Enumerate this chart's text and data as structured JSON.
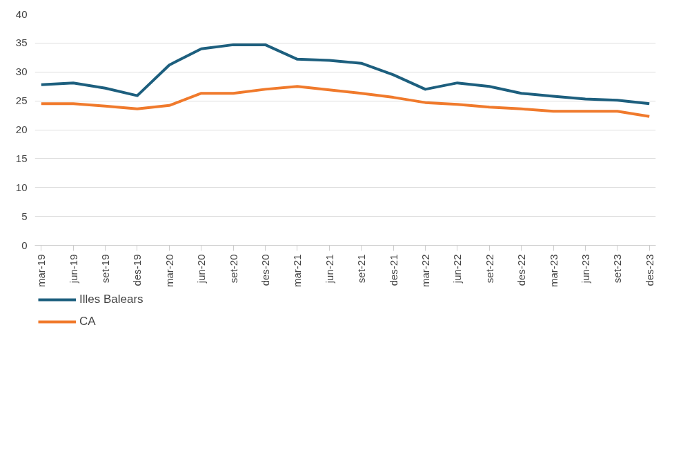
{
  "chart_data": {
    "type": "line",
    "categories": [
      "mar-19",
      "jun-19",
      "set-19",
      "des-19",
      "mar-20",
      "jun-20",
      "set-20",
      "des-20",
      "mar-21",
      "jun-21",
      "set-21",
      "des-21",
      "mar-22",
      "jun-22",
      "set-22",
      "des-22",
      "mar-23",
      "jun-23",
      "set-23",
      "des-23"
    ],
    "series": [
      {
        "name": "Illes Balears",
        "color": "#1d5f7e",
        "values": [
          27.8,
          28.1,
          27.2,
          25.9,
          31.2,
          34.0,
          34.7,
          34.7,
          32.2,
          32.0,
          31.5,
          29.5,
          27.0,
          28.1,
          27.5,
          26.3,
          25.8,
          25.3,
          25.1,
          24.5
        ]
      },
      {
        "name": "CA",
        "color": "#f07a2c",
        "values": [
          24.5,
          24.5,
          24.1,
          23.6,
          24.2,
          26.3,
          26.3,
          27.0,
          27.5,
          26.9,
          26.3,
          25.6,
          24.7,
          24.4,
          23.9,
          23.6,
          23.2,
          23.2,
          23.2,
          22.3
        ]
      }
    ],
    "ylim": [
      0,
      40
    ],
    "yticks": [
      0,
      5,
      10,
      15,
      20,
      25,
      30,
      35,
      40
    ],
    "grid": "y",
    "legend": "bottom left",
    "line_style": "solid",
    "marker": "none"
  }
}
